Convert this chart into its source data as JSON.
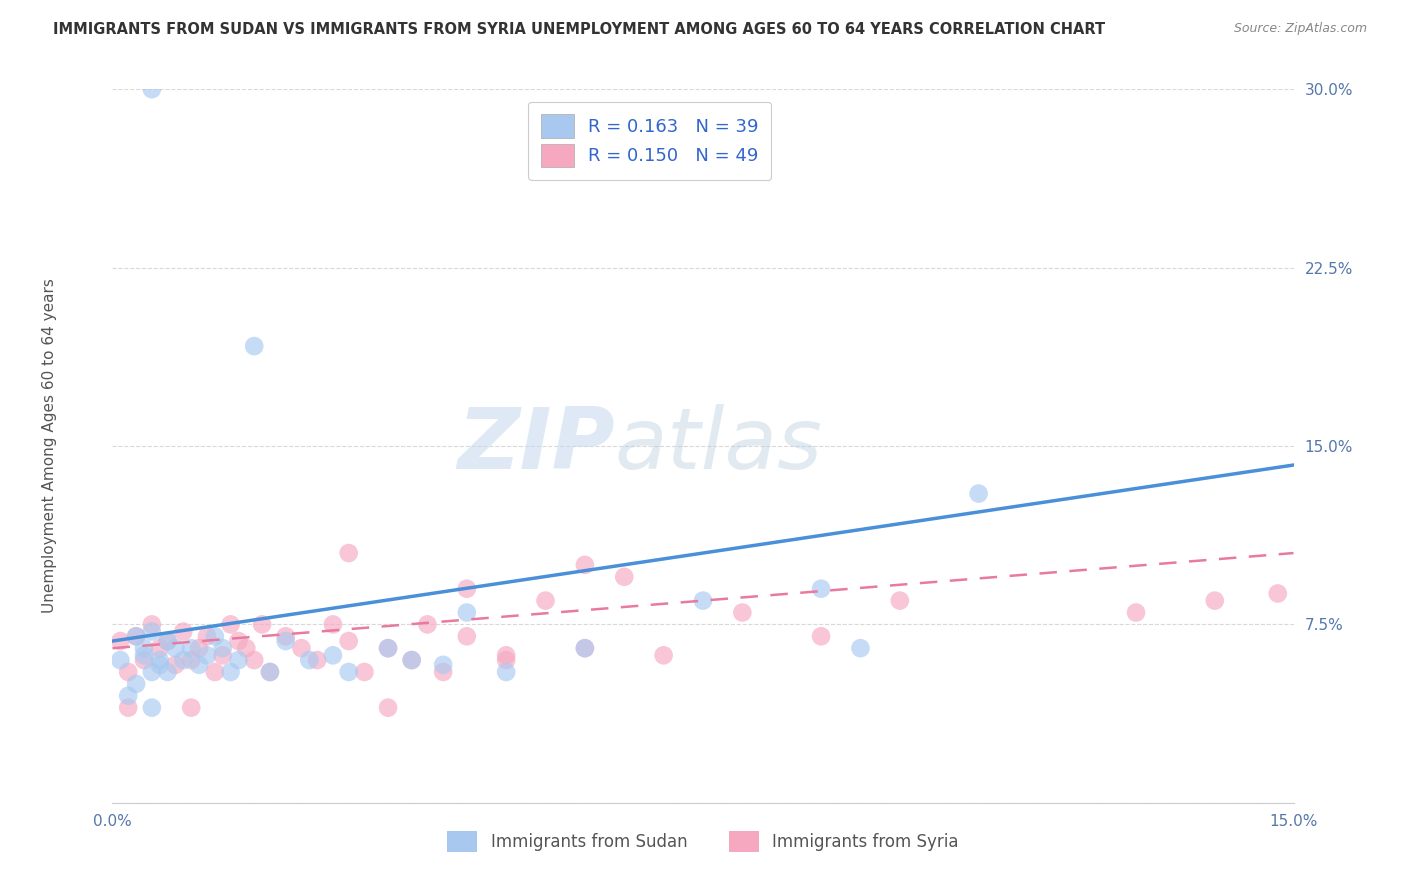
{
  "title": "IMMIGRANTS FROM SUDAN VS IMMIGRANTS FROM SYRIA UNEMPLOYMENT AMONG AGES 60 TO 64 YEARS CORRELATION CHART",
  "source": "Source: ZipAtlas.com",
  "ylabel": "Unemployment Among Ages 60 to 64 years",
  "xlim": [
    0.0,
    0.15
  ],
  "ylim": [
    0.0,
    0.3
  ],
  "xticks": [
    0.0,
    0.15
  ],
  "xticklabels": [
    "0.0%",
    "15.0%"
  ],
  "yticks": [
    0.0,
    0.075,
    0.15,
    0.225,
    0.3
  ],
  "yticklabels": [
    "",
    "7.5%",
    "15.0%",
    "22.5%",
    "30.0%"
  ],
  "sudan_color": "#a8c8f0",
  "syria_color": "#f5a8c0",
  "sudan_line_color": "#4a90d9",
  "syria_line_color": "#e87a9f",
  "background_color": "#ffffff",
  "watermark_zip": "ZIP",
  "watermark_atlas": "atlas",
  "grid_color": "#d0d0d0",
  "sudan_points_x": [
    0.005,
    0.001,
    0.002,
    0.003,
    0.004,
    0.005,
    0.006,
    0.007,
    0.003,
    0.004,
    0.005,
    0.006,
    0.007,
    0.008,
    0.009,
    0.01,
    0.011,
    0.012,
    0.013,
    0.014,
    0.015,
    0.016,
    0.018,
    0.02,
    0.022,
    0.025,
    0.028,
    0.03,
    0.035,
    0.038,
    0.042,
    0.045,
    0.05,
    0.06,
    0.075,
    0.09,
    0.095,
    0.11,
    0.005
  ],
  "sudan_points_y": [
    0.3,
    0.06,
    0.045,
    0.07,
    0.065,
    0.055,
    0.06,
    0.055,
    0.05,
    0.062,
    0.072,
    0.058,
    0.068,
    0.065,
    0.06,
    0.065,
    0.058,
    0.062,
    0.07,
    0.065,
    0.055,
    0.06,
    0.192,
    0.055,
    0.068,
    0.06,
    0.062,
    0.055,
    0.065,
    0.06,
    0.058,
    0.08,
    0.055,
    0.065,
    0.085,
    0.09,
    0.065,
    0.13,
    0.04
  ],
  "syria_points_x": [
    0.001,
    0.002,
    0.003,
    0.004,
    0.005,
    0.006,
    0.007,
    0.008,
    0.009,
    0.01,
    0.011,
    0.012,
    0.013,
    0.014,
    0.015,
    0.016,
    0.017,
    0.018,
    0.019,
    0.02,
    0.022,
    0.024,
    0.026,
    0.028,
    0.03,
    0.032,
    0.035,
    0.038,
    0.04,
    0.042,
    0.045,
    0.05,
    0.055,
    0.06,
    0.065,
    0.03,
    0.045,
    0.05,
    0.06,
    0.07,
    0.08,
    0.09,
    0.1,
    0.13,
    0.14,
    0.148,
    0.002,
    0.01,
    0.035
  ],
  "syria_points_y": [
    0.068,
    0.055,
    0.07,
    0.06,
    0.075,
    0.065,
    0.068,
    0.058,
    0.072,
    0.06,
    0.065,
    0.07,
    0.055,
    0.062,
    0.075,
    0.068,
    0.065,
    0.06,
    0.075,
    0.055,
    0.07,
    0.065,
    0.06,
    0.075,
    0.068,
    0.055,
    0.065,
    0.06,
    0.075,
    0.055,
    0.07,
    0.06,
    0.085,
    0.065,
    0.095,
    0.105,
    0.09,
    0.062,
    0.1,
    0.062,
    0.08,
    0.07,
    0.085,
    0.08,
    0.085,
    0.088,
    0.04,
    0.04,
    0.04
  ],
  "sudan_trend_x": [
    0.0,
    0.15
  ],
  "sudan_trend_y": [
    0.068,
    0.142
  ],
  "syria_trend_x": [
    0.0,
    0.15
  ],
  "syria_trend_y": [
    0.065,
    0.105
  ]
}
